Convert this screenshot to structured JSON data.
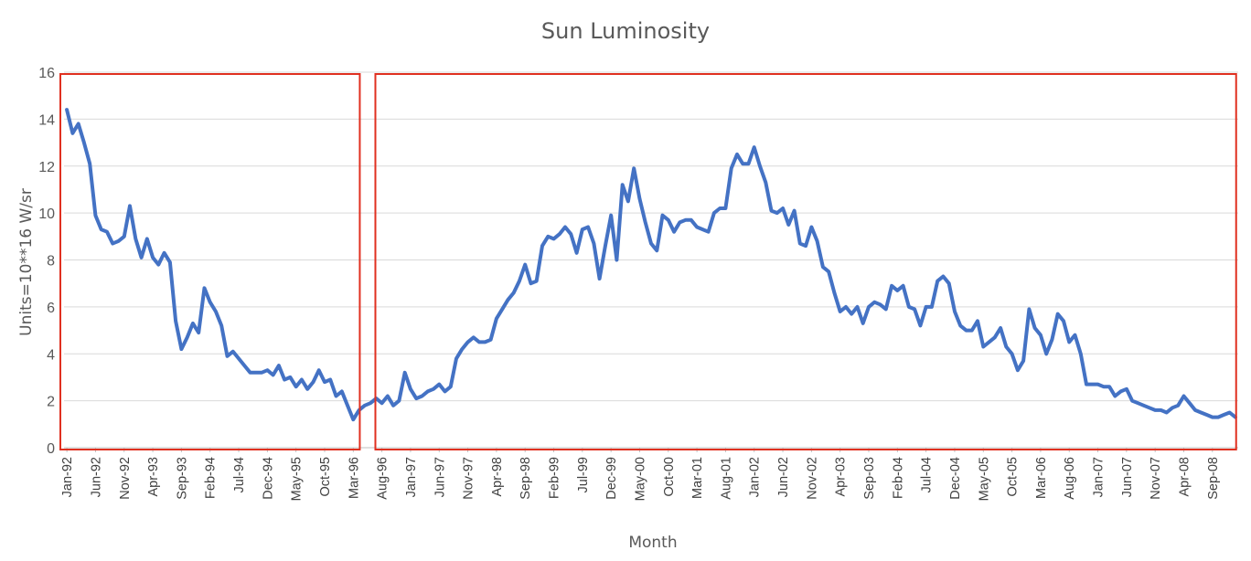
{
  "chart_data": {
    "type": "line",
    "title": "Sun Luminosity",
    "xlabel": "Month",
    "ylabel": "Units=10**16 W/sr",
    "ylim": [
      0,
      16
    ],
    "yticks": [
      0,
      2,
      4,
      6,
      8,
      10,
      12,
      14,
      16
    ],
    "grid": "horizontal",
    "x_start": "Jan-92",
    "x_end": "Dec-08",
    "x_tick_labels": [
      "Jan-92",
      "Jun-92",
      "Nov-92",
      "Apr-93",
      "Sep-93",
      "Feb-94",
      "Jul-94",
      "Dec-94",
      "May-95",
      "Oct-95",
      "Mar-96",
      "Aug-96",
      "Jan-97",
      "Jun-97",
      "Nov-97",
      "Apr-98",
      "Sep-98",
      "Feb-99",
      "Jul-99",
      "Dec-99",
      "May-00",
      "Oct-00",
      "Mar-01",
      "Aug-01",
      "Jan-02",
      "Jun-02",
      "Nov-02",
      "Apr-03",
      "Sep-03",
      "Feb-04",
      "Jul-04",
      "Dec-04",
      "May-05",
      "Oct-05",
      "Mar-06",
      "Aug-06",
      "Jan-07",
      "Jun-07",
      "Nov-07",
      "Apr-08",
      "Sep-08"
    ],
    "series": [
      {
        "color": "#4472c4",
        "values": [
          14.4,
          13.4,
          13.8,
          13.0,
          12.1,
          9.9,
          9.3,
          9.2,
          8.7,
          8.8,
          9.0,
          10.3,
          8.9,
          8.1,
          8.9,
          8.1,
          7.8,
          8.3,
          7.9,
          5.4,
          4.2,
          4.7,
          5.3,
          4.9,
          6.8,
          6.2,
          5.8,
          5.2,
          3.9,
          4.1,
          3.8,
          3.5,
          3.2,
          3.2,
          3.2,
          3.3,
          3.1,
          3.5,
          2.9,
          3.0,
          2.6,
          2.9,
          2.5,
          2.8,
          3.3,
          2.8,
          2.9,
          2.2,
          2.4,
          1.8,
          1.2,
          1.6,
          1.8,
          1.9,
          2.1,
          1.9,
          2.2,
          1.8,
          2.0,
          3.2,
          2.5,
          2.1,
          2.2,
          2.4,
          2.5,
          2.7,
          2.4,
          2.6,
          3.8,
          4.2,
          4.5,
          4.7,
          4.5,
          4.5,
          4.6,
          5.5,
          5.9,
          6.3,
          6.6,
          7.1,
          7.8,
          7.0,
          7.1,
          8.6,
          9.0,
          8.9,
          9.1,
          9.4,
          9.1,
          8.3,
          9.3,
          9.4,
          8.7,
          7.2,
          8.6,
          9.9,
          8.0,
          11.2,
          10.5,
          11.9,
          10.6,
          9.6,
          8.7,
          8.4,
          9.9,
          9.7,
          9.2,
          9.6,
          9.7,
          9.7,
          9.4,
          9.3,
          9.2,
          10.0,
          10.2,
          10.2,
          11.9,
          12.5,
          12.1,
          12.1,
          12.8,
          12.0,
          11.3,
          10.1,
          10.0,
          10.2,
          9.5,
          10.1,
          8.7,
          8.6,
          9.4,
          8.8,
          7.7,
          7.5,
          6.6,
          5.8,
          6.0,
          5.7,
          6.0,
          5.3,
          6.0,
          6.2,
          6.1,
          5.9,
          6.9,
          6.7,
          6.9,
          6.0,
          5.9,
          5.2,
          6.0,
          6.0,
          7.1,
          7.3,
          7.0,
          5.8,
          5.2,
          5.0,
          5.0,
          5.4,
          4.3,
          4.5,
          4.7,
          5.1,
          4.3,
          4.0,
          3.3,
          3.7,
          5.9,
          5.1,
          4.8,
          4.0,
          4.6,
          5.7,
          5.4,
          4.5,
          4.8,
          4.0,
          2.7,
          2.7,
          2.7,
          2.6,
          2.6,
          2.2,
          2.4,
          2.5,
          2.0,
          1.9,
          1.8,
          1.7,
          1.6,
          1.6,
          1.5,
          1.7,
          1.8,
          2.2,
          1.9,
          1.6,
          1.5,
          1.4,
          1.3,
          1.3,
          1.4,
          1.5,
          1.3
        ]
      }
    ],
    "highlight_boxes": [
      {
        "from": "Jan-92",
        "to": "Mar-96",
        "color": "#e03020"
      },
      {
        "from": "Aug-96",
        "to": "Dec-08",
        "color": "#e03020"
      }
    ]
  }
}
